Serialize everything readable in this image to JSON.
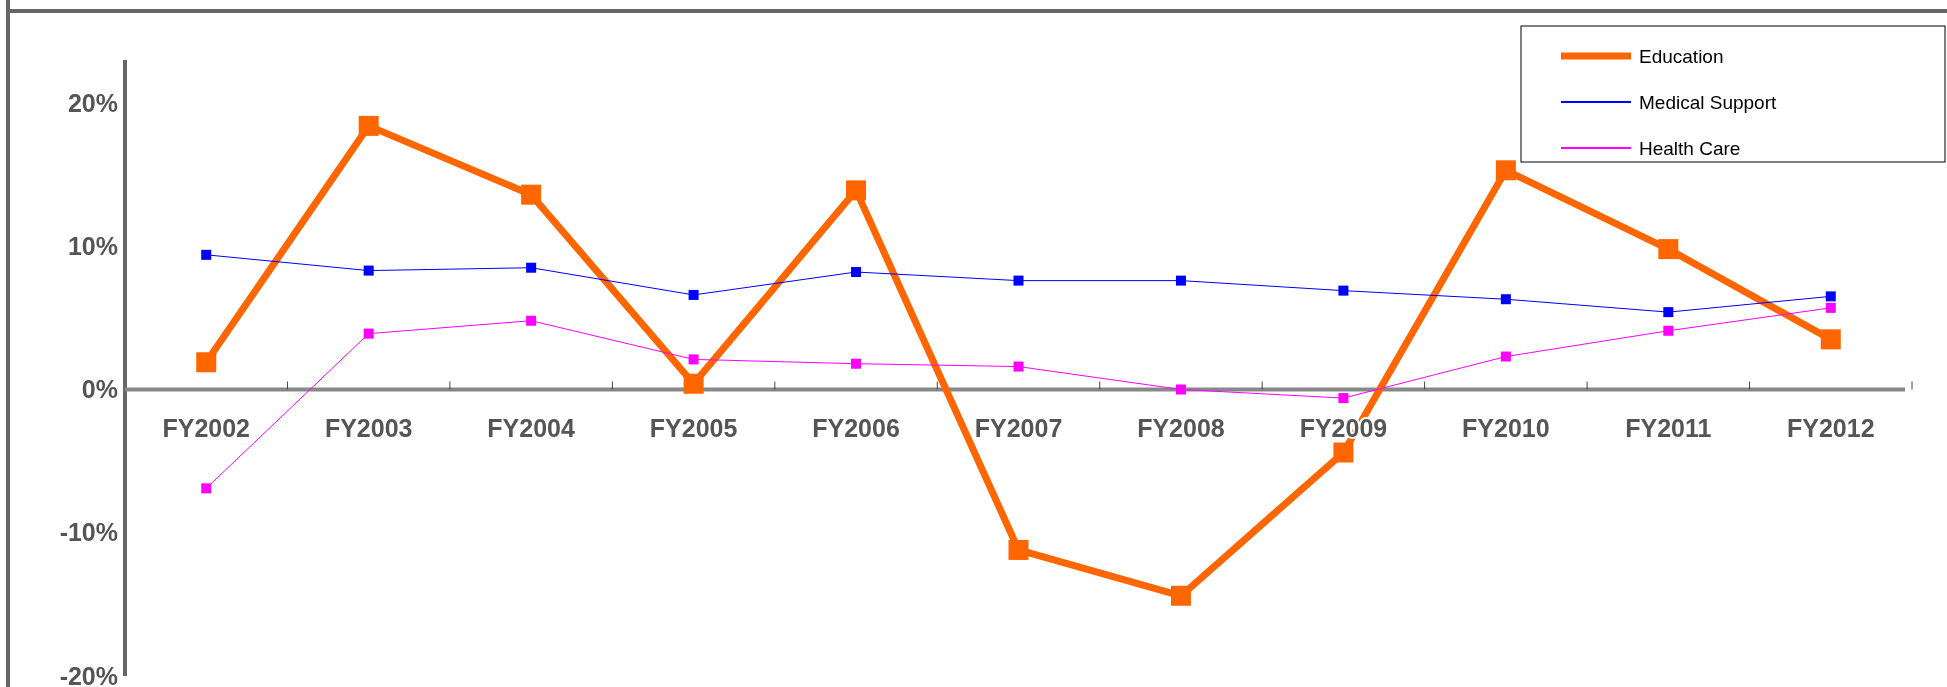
{
  "chart_data": {
    "type": "line",
    "categories": [
      "FY2002",
      "FY2003",
      "FY2004",
      "FY2005",
      "FY2006",
      "FY2007",
      "FY2008",
      "FY2009",
      "FY2010",
      "FY2011",
      "FY2012"
    ],
    "series": [
      {
        "name": "Education",
        "color": "#ff6600",
        "values": [
          1.9,
          18.4,
          13.6,
          0.4,
          13.9,
          -11.2,
          -14.4,
          -4.4,
          15.3,
          9.8,
          3.5
        ]
      },
      {
        "name": "Medical Support",
        "color": "#0000ff",
        "values": [
          9.4,
          8.3,
          8.5,
          6.6,
          8.2,
          7.6,
          7.6,
          6.9,
          6.3,
          5.4,
          6.5
        ]
      },
      {
        "name": "Health Care",
        "color": "#ff00ff",
        "values": [
          -6.9,
          3.9,
          4.8,
          2.1,
          1.8,
          1.6,
          0.0,
          -0.6,
          2.3,
          4.1,
          5.7
        ]
      }
    ],
    "ylim": [
      -20,
      23
    ],
    "yticks": [
      {
        "value": -20,
        "label": "-20%"
      },
      {
        "value": -10,
        "label": "-10%"
      },
      {
        "value": 0,
        "label": "0%"
      },
      {
        "value": 10,
        "label": "10%"
      },
      {
        "value": 20,
        "label": "20%"
      }
    ],
    "marker": "square",
    "legend": "top right",
    "grid": false
  }
}
